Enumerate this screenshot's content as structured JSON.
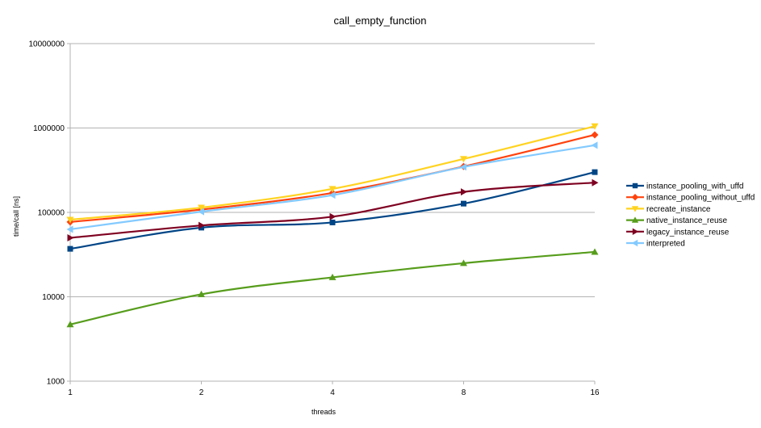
{
  "chart_data": {
    "type": "line",
    "title": "call_empty_function",
    "xlabel": "threads",
    "ylabel": "time/call [ns]",
    "x_scale": "log2",
    "y_scale": "log10",
    "x": [
      1,
      2,
      4,
      8,
      16
    ],
    "x_tick_labels": [
      "1",
      "2",
      "4",
      "8",
      "16"
    ],
    "ylim": [
      1000,
      10000000
    ],
    "y_tick_labels": [
      "1000",
      "10000",
      "100000",
      "1000000",
      "10000000"
    ],
    "grid": "horizontal",
    "legend_position": "right",
    "series": [
      {
        "name": "instance_pooling_with_uffd",
        "color": "#004586",
        "marker": "square",
        "values": [
          37000,
          66000,
          76000,
          127000,
          300000
        ]
      },
      {
        "name": "instance_pooling_without_uffd",
        "color": "#ff420e",
        "marker": "diamond",
        "values": [
          77000,
          108000,
          170000,
          350000,
          830000
        ]
      },
      {
        "name": "recreate_instance",
        "color": "#ffd320",
        "marker": "triangle-down",
        "values": [
          82000,
          114000,
          190000,
          430000,
          1050000
        ]
      },
      {
        "name": "native_instance_reuse",
        "color": "#579d1c",
        "marker": "triangle-up",
        "values": [
          4700,
          10700,
          17000,
          25000,
          34000
        ]
      },
      {
        "name": "legacy_instance_reuse",
        "color": "#7e0021",
        "marker": "triangle-right",
        "values": [
          50000,
          70000,
          89000,
          175000,
          225000
        ]
      },
      {
        "name": "interpreted",
        "color": "#83caff",
        "marker": "triangle-left",
        "values": [
          63000,
          102000,
          160000,
          345000,
          625000
        ]
      }
    ]
  }
}
